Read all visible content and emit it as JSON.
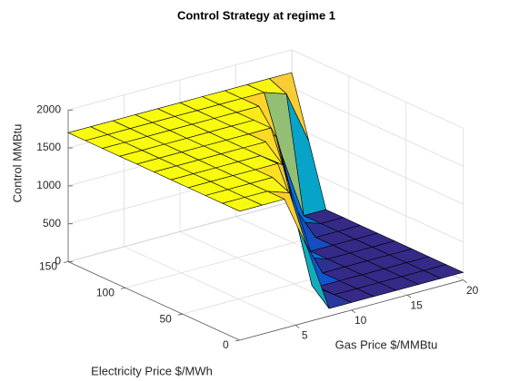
{
  "chart_data": {
    "type": "surface",
    "title": "Control Strategy at regime 1",
    "xlabel": "Gas Price $/MMBtu",
    "ylabel": "Electricity Price $/MWh",
    "zlabel": "Control MMBtu",
    "x": [
      0,
      2,
      4,
      6,
      8,
      10,
      12,
      14,
      16,
      18,
      20
    ],
    "y": [
      0,
      15,
      30,
      45,
      60,
      75,
      90,
      105,
      120,
      135,
      150
    ],
    "z": [
      [
        1700,
        1700,
        1700,
        1000,
        100,
        100,
        100,
        100,
        100,
        100,
        100
      ],
      [
        1700,
        1700,
        1700,
        1600,
        300,
        100,
        100,
        100,
        100,
        100,
        100
      ],
      [
        1700,
        1700,
        1700,
        1700,
        1200,
        100,
        100,
        100,
        100,
        100,
        100
      ],
      [
        1700,
        1700,
        1700,
        1700,
        1700,
        700,
        100,
        100,
        100,
        100,
        100
      ],
      [
        1700,
        1700,
        1700,
        1700,
        1700,
        1500,
        200,
        100,
        100,
        100,
        100
      ],
      [
        1700,
        1700,
        1700,
        1700,
        1700,
        1700,
        1100,
        100,
        100,
        100,
        100
      ],
      [
        1700,
        1700,
        1700,
        1700,
        1700,
        1700,
        1700,
        600,
        100,
        100,
        100
      ],
      [
        1700,
        1700,
        1700,
        1700,
        1700,
        1700,
        1700,
        1400,
        200,
        100,
        100
      ],
      [
        1700,
        1700,
        1700,
        1700,
        1700,
        1700,
        1700,
        1700,
        1000,
        100,
        100
      ],
      [
        1700,
        1700,
        1700,
        1700,
        1700,
        1700,
        1700,
        1700,
        1700,
        1600,
        900
      ],
      [
        1700,
        1700,
        1700,
        1700,
        1700,
        1700,
        1700,
        1700,
        1700,
        1700,
        1700
      ]
    ],
    "xlim": [
      0,
      20
    ],
    "ylim": [
      0,
      150
    ],
    "zlim": [
      0,
      2000
    ],
    "xticks": [
      5,
      10,
      15,
      20
    ],
    "yticks": [
      0,
      50,
      100,
      150
    ],
    "zticks": [
      0,
      500,
      1000,
      1500,
      2000
    ],
    "grid": true,
    "view": [
      -37.5,
      30
    ],
    "colormap": [
      "#352a87",
      "#0363e1",
      "#1485d4",
      "#06a7c6",
      "#38b99e",
      "#92bf73",
      "#d9ba56",
      "#fcce2e",
      "#f9fb0e"
    ]
  }
}
